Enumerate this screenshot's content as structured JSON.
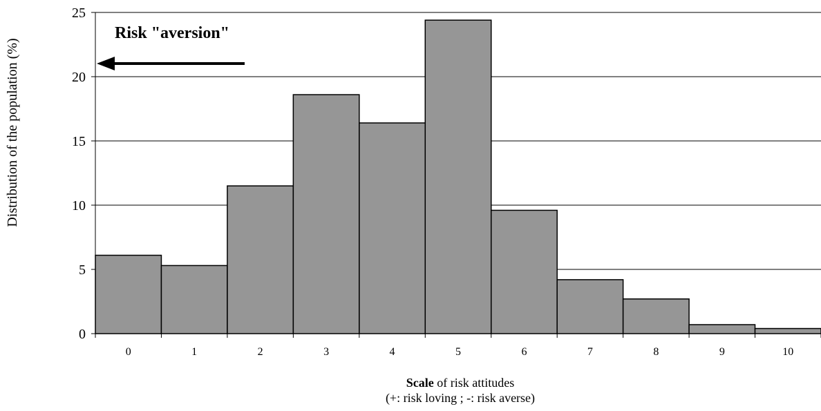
{
  "chart_data": {
    "type": "bar",
    "categories": [
      "0",
      "1",
      "2",
      "3",
      "4",
      "5",
      "6",
      "7",
      "8",
      "9",
      "10"
    ],
    "values": [
      6.1,
      5.3,
      11.5,
      18.6,
      16.4,
      24.4,
      9.6,
      4.2,
      2.7,
      0.7,
      0.4
    ],
    "ylim": [
      0,
      25
    ],
    "yticks": [
      "0",
      "5",
      "10",
      "15",
      "20",
      "25"
    ],
    "ylabel": "Distribution of the population (%)",
    "xlabel_bold": "Scale",
    "xlabel_rest": " of risk attitudes",
    "xlabel_line2": "(+: risk loving ; -: risk averse)",
    "grid": true,
    "bar_color": "#969696",
    "annotation": "Risk \"aversion\""
  }
}
